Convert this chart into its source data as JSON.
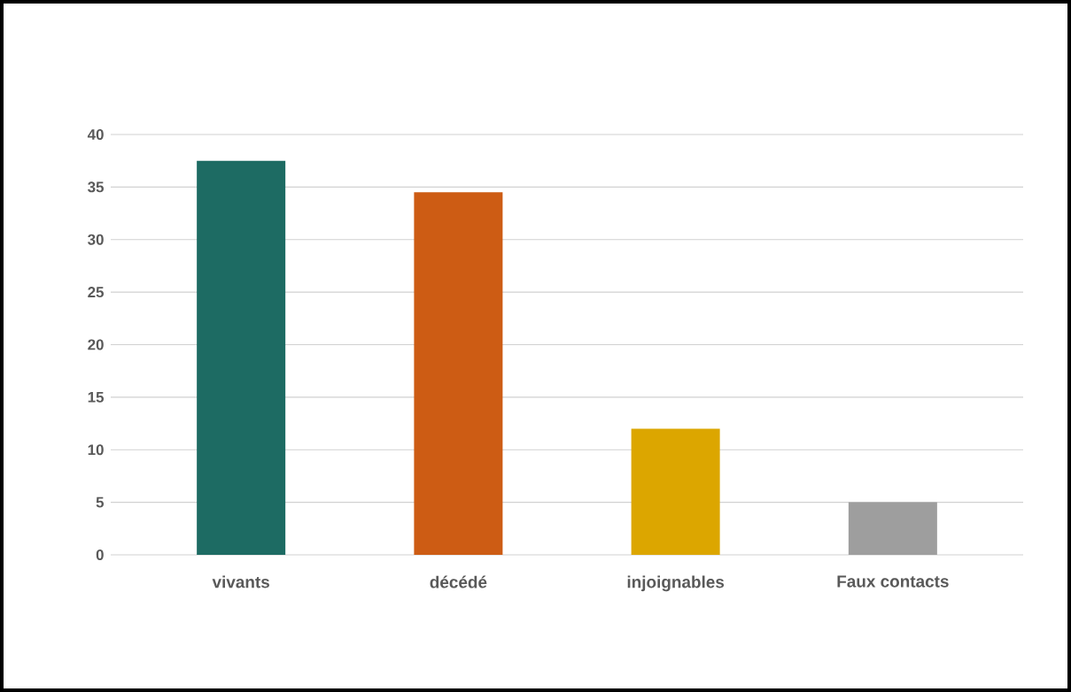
{
  "chart_data": {
    "type": "bar",
    "categories": [
      "vivants",
      "décédé",
      "injoignables",
      "Faux contacts"
    ],
    "values": [
      37.5,
      34.5,
      12,
      5
    ],
    "colors": [
      "#1d6b63",
      "#cd5c14",
      "#dca600",
      "#9e9e9e"
    ],
    "ylim": [
      0,
      40
    ],
    "yticks": [
      0,
      5,
      10,
      15,
      20,
      25,
      30,
      35,
      40
    ],
    "grid": "y"
  }
}
